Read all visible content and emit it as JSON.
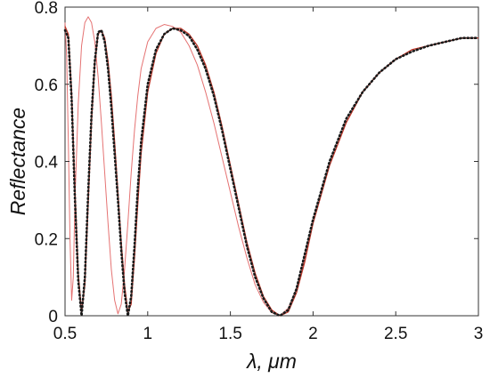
{
  "chart_data": {
    "type": "line",
    "title": "",
    "xlabel": "λ, μm",
    "ylabel": "Reflectance",
    "xlim": [
      0.5,
      3
    ],
    "ylim": [
      0,
      0.8
    ],
    "x_ticks": [
      0.5,
      1,
      1.5,
      2,
      2.5,
      3
    ],
    "x_tick_labels": [
      "0.5",
      "1",
      "1.5",
      "2",
      "2.5",
      "3"
    ],
    "y_ticks": [
      0,
      0.2,
      0.4,
      0.6,
      0.8
    ],
    "y_tick_labels": [
      "0",
      "0.2",
      "0.4",
      "0.6",
      "0.8"
    ],
    "grid": false,
    "legend": "none",
    "series": [
      {
        "style": "dotted",
        "color": "#1a1a1a",
        "x": [
          0.5,
          0.52,
          0.54,
          0.56,
          0.58,
          0.6,
          0.62,
          0.64,
          0.66,
          0.68,
          0.7,
          0.72,
          0.74,
          0.76,
          0.78,
          0.8,
          0.82,
          0.84,
          0.86,
          0.88,
          0.9,
          0.92,
          0.94,
          0.96,
          1.0,
          1.05,
          1.1,
          1.15,
          1.2,
          1.25,
          1.3,
          1.35,
          1.4,
          1.45,
          1.5,
          1.55,
          1.6,
          1.65,
          1.7,
          1.75,
          1.8,
          1.85,
          1.9,
          1.95,
          2.0,
          2.1,
          2.2,
          2.3,
          2.4,
          2.5,
          2.6,
          2.7,
          2.8,
          2.9,
          3.0
        ],
        "y": [
          0.74,
          0.72,
          0.56,
          0.3,
          0.09,
          0.0,
          0.1,
          0.32,
          0.52,
          0.66,
          0.735,
          0.74,
          0.71,
          0.64,
          0.54,
          0.42,
          0.3,
          0.17,
          0.06,
          0.0,
          0.05,
          0.18,
          0.33,
          0.45,
          0.6,
          0.69,
          0.73,
          0.745,
          0.74,
          0.725,
          0.69,
          0.64,
          0.57,
          0.48,
          0.38,
          0.28,
          0.18,
          0.1,
          0.045,
          0.01,
          0.0,
          0.015,
          0.07,
          0.16,
          0.25,
          0.4,
          0.51,
          0.58,
          0.63,
          0.665,
          0.685,
          0.7,
          0.71,
          0.72,
          0.72
        ]
      },
      {
        "style": "solid",
        "color": "#c0392b",
        "x": [
          0.5,
          0.52,
          0.54,
          0.56,
          0.58,
          0.6,
          0.62,
          0.64,
          0.66,
          0.68,
          0.7,
          0.72,
          0.74,
          0.76,
          0.78,
          0.8,
          0.82,
          0.84,
          0.86,
          0.88,
          0.9,
          0.92,
          0.94,
          0.96,
          1.0,
          1.05,
          1.1,
          1.15,
          1.2,
          1.25,
          1.3,
          1.35,
          1.4,
          1.45,
          1.5,
          1.55,
          1.6,
          1.65,
          1.7,
          1.75,
          1.8,
          1.85,
          1.9,
          1.95,
          2.0,
          2.1,
          2.2,
          2.3,
          2.4,
          2.5,
          2.6,
          2.7,
          2.8,
          2.9,
          3.0
        ],
        "y": [
          0.75,
          0.73,
          0.58,
          0.33,
          0.11,
          0.01,
          0.08,
          0.29,
          0.5,
          0.65,
          0.73,
          0.74,
          0.72,
          0.66,
          0.57,
          0.45,
          0.32,
          0.19,
          0.08,
          0.01,
          0.03,
          0.15,
          0.29,
          0.42,
          0.58,
          0.68,
          0.73,
          0.745,
          0.745,
          0.73,
          0.7,
          0.65,
          0.58,
          0.49,
          0.39,
          0.29,
          0.19,
          0.11,
          0.05,
          0.015,
          0.0,
          0.01,
          0.06,
          0.14,
          0.24,
          0.39,
          0.5,
          0.58,
          0.63,
          0.665,
          0.69,
          0.7,
          0.71,
          0.72,
          0.72
        ]
      },
      {
        "style": "solid-thin",
        "color": "#e57373",
        "x": [
          0.5,
          0.51,
          0.52,
          0.53,
          0.54,
          0.55,
          0.56,
          0.58,
          0.6,
          0.62,
          0.64,
          0.66,
          0.68,
          0.7,
          0.72,
          0.74,
          0.76,
          0.78,
          0.8,
          0.82,
          0.84,
          0.86,
          0.88,
          0.9,
          0.92,
          0.94,
          0.96,
          1.0,
          1.05,
          1.1,
          1.15,
          1.2,
          1.25,
          1.3,
          1.35,
          1.4,
          1.45,
          1.5,
          1.55,
          1.6,
          1.65,
          1.7,
          1.75,
          1.8,
          1.85,
          1.9,
          1.95,
          2.0,
          2.1,
          2.2,
          2.3,
          2.4,
          2.5,
          2.6,
          2.7,
          2.8,
          2.9,
          3.0
        ],
        "y": [
          0.76,
          0.67,
          0.45,
          0.2,
          0.04,
          0.1,
          0.3,
          0.55,
          0.7,
          0.76,
          0.775,
          0.76,
          0.71,
          0.62,
          0.5,
          0.37,
          0.24,
          0.12,
          0.04,
          0.005,
          0.03,
          0.12,
          0.24,
          0.37,
          0.48,
          0.57,
          0.64,
          0.71,
          0.745,
          0.755,
          0.75,
          0.735,
          0.7,
          0.65,
          0.58,
          0.5,
          0.41,
          0.32,
          0.23,
          0.15,
          0.08,
          0.035,
          0.008,
          0.0,
          0.02,
          0.07,
          0.15,
          0.24,
          0.39,
          0.5,
          0.58,
          0.63,
          0.665,
          0.69,
          0.7,
          0.71,
          0.72,
          0.72
        ]
      }
    ]
  }
}
